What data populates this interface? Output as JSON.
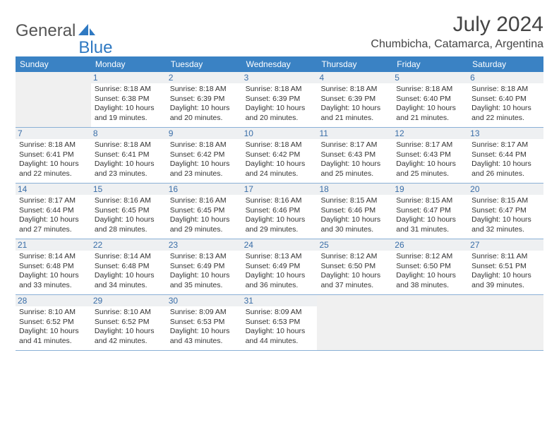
{
  "brand": {
    "text_general": "General",
    "text_blue": "Blue",
    "icon_color": "#2f79c2"
  },
  "header": {
    "title": "July 2024",
    "location": "Chumbicha, Catamarca, Argentina"
  },
  "colors": {
    "header_bg": "#3a82c4",
    "header_text": "#ffffff",
    "daynum_bg": "#eef0f2",
    "daynum_text": "#3a6ea8",
    "body_text": "#333333",
    "week_border": "#8ab0d6",
    "blank_bg": "#f0f0f0"
  },
  "weekdays": [
    "Sunday",
    "Monday",
    "Tuesday",
    "Wednesday",
    "Thursday",
    "Friday",
    "Saturday"
  ],
  "weeks": [
    [
      {
        "blank": true
      },
      {
        "num": "1",
        "sunrise": "Sunrise: 8:18 AM",
        "sunset": "Sunset: 6:38 PM",
        "daylight1": "Daylight: 10 hours",
        "daylight2": "and 19 minutes."
      },
      {
        "num": "2",
        "sunrise": "Sunrise: 8:18 AM",
        "sunset": "Sunset: 6:39 PM",
        "daylight1": "Daylight: 10 hours",
        "daylight2": "and 20 minutes."
      },
      {
        "num": "3",
        "sunrise": "Sunrise: 8:18 AM",
        "sunset": "Sunset: 6:39 PM",
        "daylight1": "Daylight: 10 hours",
        "daylight2": "and 20 minutes."
      },
      {
        "num": "4",
        "sunrise": "Sunrise: 8:18 AM",
        "sunset": "Sunset: 6:39 PM",
        "daylight1": "Daylight: 10 hours",
        "daylight2": "and 21 minutes."
      },
      {
        "num": "5",
        "sunrise": "Sunrise: 8:18 AM",
        "sunset": "Sunset: 6:40 PM",
        "daylight1": "Daylight: 10 hours",
        "daylight2": "and 21 minutes."
      },
      {
        "num": "6",
        "sunrise": "Sunrise: 8:18 AM",
        "sunset": "Sunset: 6:40 PM",
        "daylight1": "Daylight: 10 hours",
        "daylight2": "and 22 minutes."
      }
    ],
    [
      {
        "num": "7",
        "sunrise": "Sunrise: 8:18 AM",
        "sunset": "Sunset: 6:41 PM",
        "daylight1": "Daylight: 10 hours",
        "daylight2": "and 22 minutes."
      },
      {
        "num": "8",
        "sunrise": "Sunrise: 8:18 AM",
        "sunset": "Sunset: 6:41 PM",
        "daylight1": "Daylight: 10 hours",
        "daylight2": "and 23 minutes."
      },
      {
        "num": "9",
        "sunrise": "Sunrise: 8:18 AM",
        "sunset": "Sunset: 6:42 PM",
        "daylight1": "Daylight: 10 hours",
        "daylight2": "and 23 minutes."
      },
      {
        "num": "10",
        "sunrise": "Sunrise: 8:18 AM",
        "sunset": "Sunset: 6:42 PM",
        "daylight1": "Daylight: 10 hours",
        "daylight2": "and 24 minutes."
      },
      {
        "num": "11",
        "sunrise": "Sunrise: 8:17 AM",
        "sunset": "Sunset: 6:43 PM",
        "daylight1": "Daylight: 10 hours",
        "daylight2": "and 25 minutes."
      },
      {
        "num": "12",
        "sunrise": "Sunrise: 8:17 AM",
        "sunset": "Sunset: 6:43 PM",
        "daylight1": "Daylight: 10 hours",
        "daylight2": "and 25 minutes."
      },
      {
        "num": "13",
        "sunrise": "Sunrise: 8:17 AM",
        "sunset": "Sunset: 6:44 PM",
        "daylight1": "Daylight: 10 hours",
        "daylight2": "and 26 minutes."
      }
    ],
    [
      {
        "num": "14",
        "sunrise": "Sunrise: 8:17 AM",
        "sunset": "Sunset: 6:44 PM",
        "daylight1": "Daylight: 10 hours",
        "daylight2": "and 27 minutes."
      },
      {
        "num": "15",
        "sunrise": "Sunrise: 8:16 AM",
        "sunset": "Sunset: 6:45 PM",
        "daylight1": "Daylight: 10 hours",
        "daylight2": "and 28 minutes."
      },
      {
        "num": "16",
        "sunrise": "Sunrise: 8:16 AM",
        "sunset": "Sunset: 6:45 PM",
        "daylight1": "Daylight: 10 hours",
        "daylight2": "and 29 minutes."
      },
      {
        "num": "17",
        "sunrise": "Sunrise: 8:16 AM",
        "sunset": "Sunset: 6:46 PM",
        "daylight1": "Daylight: 10 hours",
        "daylight2": "and 29 minutes."
      },
      {
        "num": "18",
        "sunrise": "Sunrise: 8:15 AM",
        "sunset": "Sunset: 6:46 PM",
        "daylight1": "Daylight: 10 hours",
        "daylight2": "and 30 minutes."
      },
      {
        "num": "19",
        "sunrise": "Sunrise: 8:15 AM",
        "sunset": "Sunset: 6:47 PM",
        "daylight1": "Daylight: 10 hours",
        "daylight2": "and 31 minutes."
      },
      {
        "num": "20",
        "sunrise": "Sunrise: 8:15 AM",
        "sunset": "Sunset: 6:47 PM",
        "daylight1": "Daylight: 10 hours",
        "daylight2": "and 32 minutes."
      }
    ],
    [
      {
        "num": "21",
        "sunrise": "Sunrise: 8:14 AM",
        "sunset": "Sunset: 6:48 PM",
        "daylight1": "Daylight: 10 hours",
        "daylight2": "and 33 minutes."
      },
      {
        "num": "22",
        "sunrise": "Sunrise: 8:14 AM",
        "sunset": "Sunset: 6:48 PM",
        "daylight1": "Daylight: 10 hours",
        "daylight2": "and 34 minutes."
      },
      {
        "num": "23",
        "sunrise": "Sunrise: 8:13 AM",
        "sunset": "Sunset: 6:49 PM",
        "daylight1": "Daylight: 10 hours",
        "daylight2": "and 35 minutes."
      },
      {
        "num": "24",
        "sunrise": "Sunrise: 8:13 AM",
        "sunset": "Sunset: 6:49 PM",
        "daylight1": "Daylight: 10 hours",
        "daylight2": "and 36 minutes."
      },
      {
        "num": "25",
        "sunrise": "Sunrise: 8:12 AM",
        "sunset": "Sunset: 6:50 PM",
        "daylight1": "Daylight: 10 hours",
        "daylight2": "and 37 minutes."
      },
      {
        "num": "26",
        "sunrise": "Sunrise: 8:12 AM",
        "sunset": "Sunset: 6:50 PM",
        "daylight1": "Daylight: 10 hours",
        "daylight2": "and 38 minutes."
      },
      {
        "num": "27",
        "sunrise": "Sunrise: 8:11 AM",
        "sunset": "Sunset: 6:51 PM",
        "daylight1": "Daylight: 10 hours",
        "daylight2": "and 39 minutes."
      }
    ],
    [
      {
        "num": "28",
        "sunrise": "Sunrise: 8:10 AM",
        "sunset": "Sunset: 6:52 PM",
        "daylight1": "Daylight: 10 hours",
        "daylight2": "and 41 minutes."
      },
      {
        "num": "29",
        "sunrise": "Sunrise: 8:10 AM",
        "sunset": "Sunset: 6:52 PM",
        "daylight1": "Daylight: 10 hours",
        "daylight2": "and 42 minutes."
      },
      {
        "num": "30",
        "sunrise": "Sunrise: 8:09 AM",
        "sunset": "Sunset: 6:53 PM",
        "daylight1": "Daylight: 10 hours",
        "daylight2": "and 43 minutes."
      },
      {
        "num": "31",
        "sunrise": "Sunrise: 8:09 AM",
        "sunset": "Sunset: 6:53 PM",
        "daylight1": "Daylight: 10 hours",
        "daylight2": "and 44 minutes."
      },
      {
        "blank": true
      },
      {
        "blank": true
      },
      {
        "blank": true
      }
    ]
  ]
}
